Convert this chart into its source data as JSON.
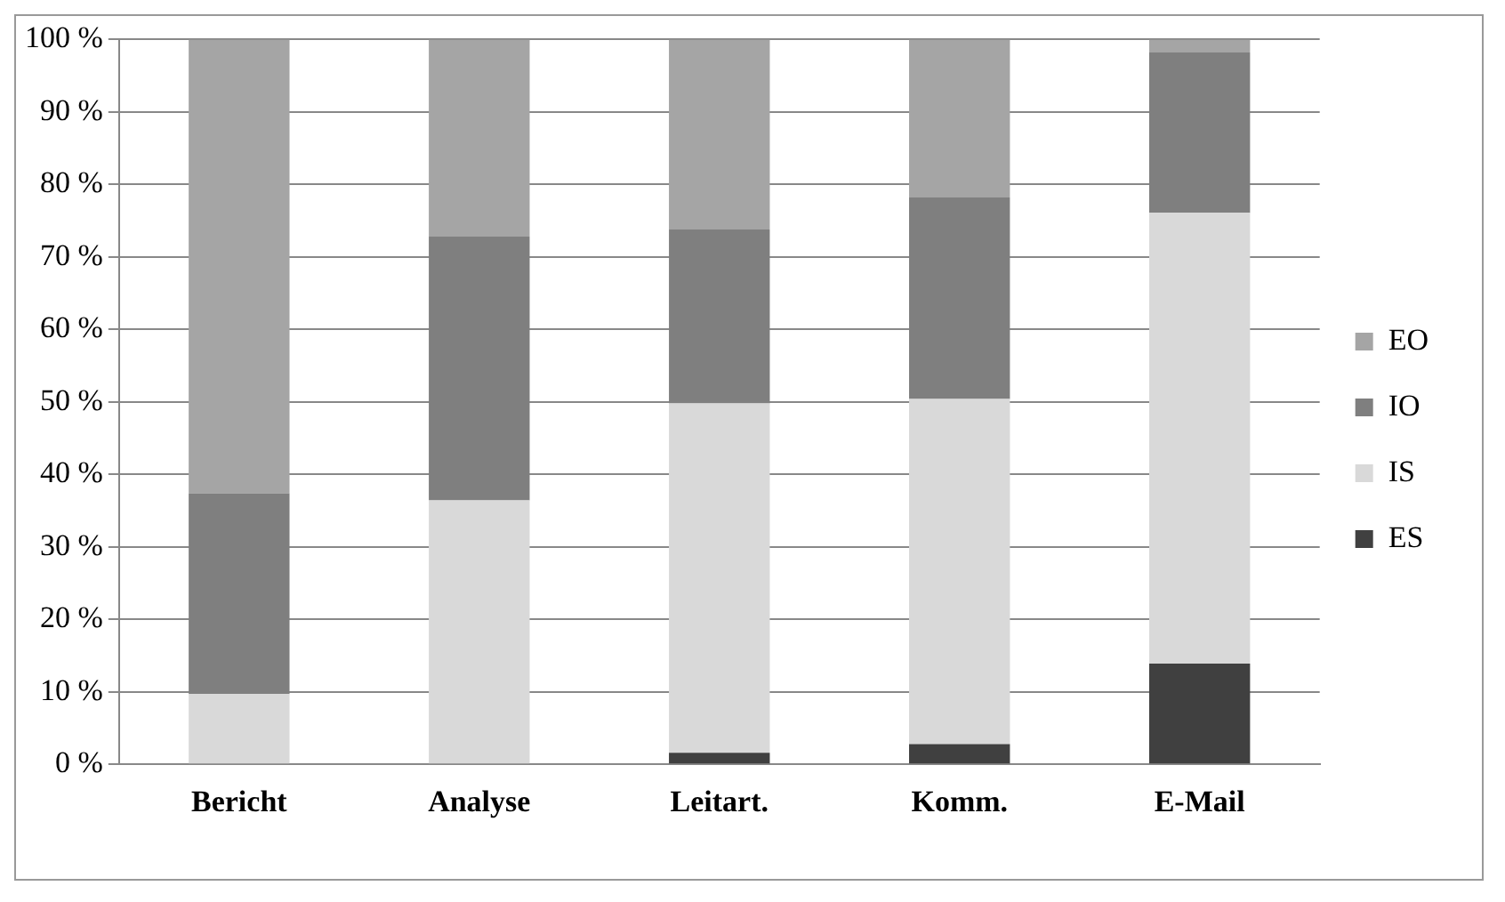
{
  "chart_data": {
    "type": "bar",
    "stacked": true,
    "categories": [
      "Bericht",
      "Analyse",
      "Leitart.",
      "Komm.",
      "E-Mail"
    ],
    "series": [
      {
        "name": "ES",
        "color": "#404040",
        "values": [
          0,
          0,
          1.6,
          2.8,
          13.9
        ]
      },
      {
        "name": "IS",
        "color": "#d9d9d9",
        "values": [
          9.7,
          36.4,
          48.2,
          47.6,
          62.2
        ]
      },
      {
        "name": "IO",
        "color": "#7f7f7f",
        "values": [
          27.7,
          36.4,
          24,
          27.8,
          22.1
        ]
      },
      {
        "name": "EO",
        "color": "#a5a5a5",
        "values": [
          62.6,
          27.2,
          26.2,
          21.8,
          1.8
        ]
      }
    ],
    "ylim": [
      0,
      100
    ],
    "yticks": [
      {
        "value": 0,
        "label": "0 %"
      },
      {
        "value": 10,
        "label": "10 %"
      },
      {
        "value": 20,
        "label": "20 %"
      },
      {
        "value": 30,
        "label": "30 %"
      },
      {
        "value": 40,
        "label": "40 %"
      },
      {
        "value": 50,
        "label": "50 %"
      },
      {
        "value": 60,
        "label": "60 %"
      },
      {
        "value": 70,
        "label": "70 %"
      },
      {
        "value": 80,
        "label": "80 %"
      },
      {
        "value": 90,
        "label": "90 %"
      },
      {
        "value": 100,
        "label": "100 %"
      }
    ],
    "grid": "y",
    "legend": "right"
  }
}
